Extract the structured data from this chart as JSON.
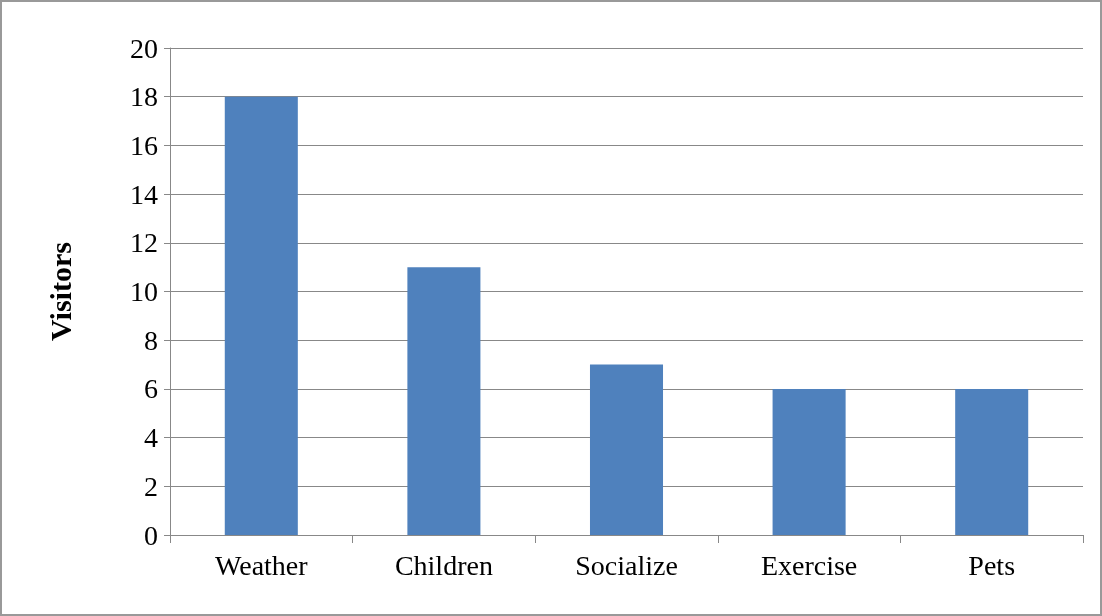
{
  "chart_data": {
    "type": "bar",
    "ylabel": "Visitors",
    "categories": [
      "Weather",
      "Children",
      "Socialize",
      "Exercise",
      "Pets"
    ],
    "values": [
      18,
      11,
      7,
      6,
      6
    ],
    "color": "#4f81bd",
    "ylim": [
      0,
      20
    ],
    "yticks": [
      0,
      2,
      4,
      6,
      8,
      10,
      12,
      14,
      16,
      18,
      20
    ],
    "grid": "y"
  }
}
